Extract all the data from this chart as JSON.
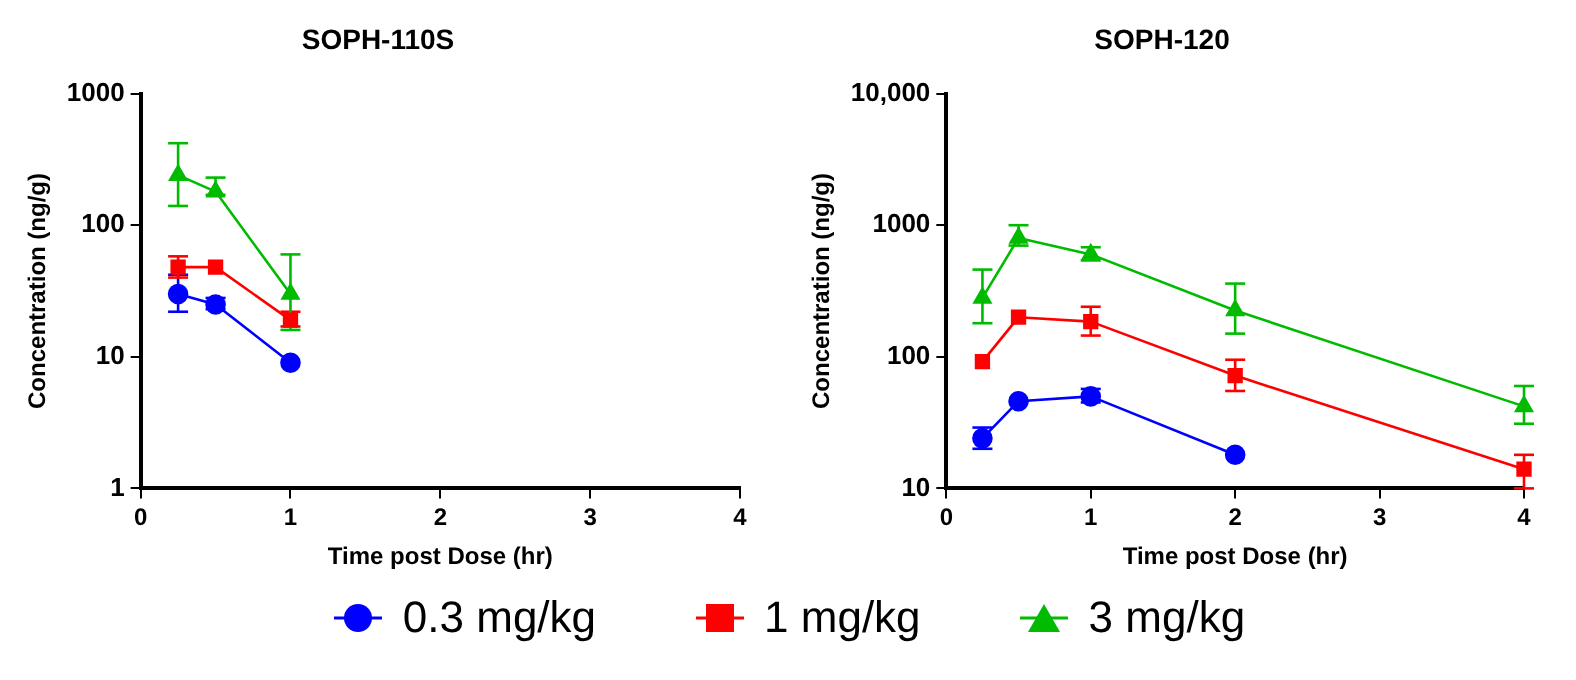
{
  "chart_data": [
    {
      "type": "line",
      "title": "SOPH-110S",
      "xlabel": "Time post Dose (hr)",
      "ylabel": "Concentration (ng/g)",
      "log": "y",
      "xlim": [
        0,
        4
      ],
      "xticks": [
        0,
        1,
        2,
        3,
        4
      ],
      "ylim": [
        1,
        1000
      ],
      "yticks": [
        1,
        10,
        100,
        1000
      ],
      "grid": false,
      "legend": "bottom",
      "series": [
        {
          "name": "0.3 mg/kg",
          "color": "#0000ff",
          "marker": "circle",
          "x": [
            0.25,
            0.5,
            1
          ],
          "values": [
            30,
            25,
            9
          ],
          "errors": [
            [
              22,
              42
            ],
            [
              23,
              28
            ],
            null
          ]
        },
        {
          "name": "1 mg/kg",
          "color": "#ff0000",
          "marker": "square",
          "x": [
            0.25,
            0.5,
            1
          ],
          "values": [
            48,
            48,
            19
          ],
          "errors": [
            [
              40,
              58
            ],
            null,
            [
              17,
              22
            ]
          ]
        },
        {
          "name": "3 mg/kg",
          "color": "#00bb00",
          "marker": "triangle",
          "x": [
            0.25,
            0.5,
            1
          ],
          "values": [
            240,
            180,
            30
          ],
          "errors": [
            [
              140,
              420
            ],
            [
              170,
              230
            ],
            [
              16,
              60
            ]
          ]
        }
      ]
    },
    {
      "type": "line",
      "title": "SOPH-120",
      "xlabel": "Time post Dose (hr)",
      "ylabel": "Concentration (ng/g)",
      "log": "y",
      "xlim": [
        0,
        4
      ],
      "xticks": [
        0,
        1,
        2,
        3,
        4
      ],
      "ylim": [
        10,
        10000
      ],
      "yticks": [
        10,
        100,
        1000,
        {
          "value": 10000,
          "label": "10,000"
        }
      ],
      "grid": false,
      "legend": "bottom",
      "series": [
        {
          "name": "0.3 mg/kg",
          "color": "#0000ff",
          "marker": "circle",
          "x": [
            0.25,
            0.5,
            1,
            2
          ],
          "values": [
            24,
            46,
            50,
            18
          ],
          "errors": [
            [
              20,
              29
            ],
            null,
            [
              45,
              57
            ],
            null
          ]
        },
        {
          "name": "1 mg/kg",
          "color": "#ff0000",
          "marker": "square",
          "x": [
            0.25,
            0.5,
            1,
            2,
            4
          ],
          "values": [
            92,
            200,
            185,
            72,
            14
          ],
          "errors": [
            null,
            null,
            [
              145,
              240
            ],
            [
              55,
              95
            ],
            [
              10,
              18
            ]
          ]
        },
        {
          "name": "3 mg/kg",
          "color": "#00bb00",
          "marker": "triangle",
          "x": [
            0.25,
            0.5,
            1,
            2,
            4
          ],
          "values": [
            280,
            800,
            600,
            225,
            42
          ],
          "errors": [
            [
              180,
              460
            ],
            [
              700,
              1000
            ],
            [
              540,
              680
            ],
            [
              150,
              360
            ],
            [
              31,
              60
            ]
          ]
        }
      ]
    }
  ]
}
